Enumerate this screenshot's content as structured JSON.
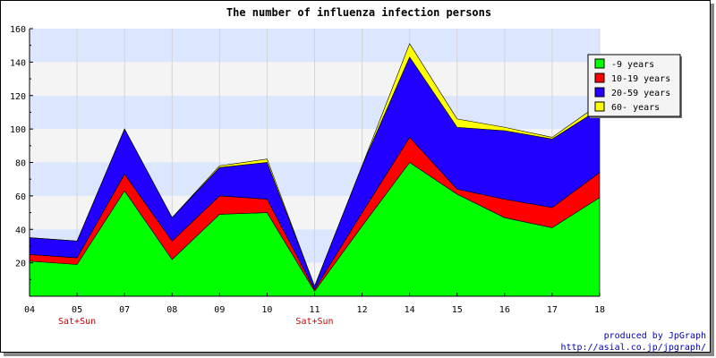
{
  "chart_data": {
    "type": "area",
    "stacked": true,
    "title": "The number of influenza infection persons",
    "x": [
      "04",
      "05",
      "07",
      "08",
      "09",
      "10",
      "11",
      "12",
      "14",
      "15",
      "16",
      "17",
      "18"
    ],
    "x_sublabels": [
      "",
      "Sat+Sun",
      "",
      "",
      "",
      "",
      "Sat+Sun",
      "",
      "",
      "",
      "",
      "",
      ""
    ],
    "ylim": [
      0,
      160
    ],
    "yticks": [
      20,
      40,
      60,
      80,
      100,
      120,
      140,
      160
    ],
    "grid": true,
    "legend_position": "right",
    "series": [
      {
        "name": "-9 years",
        "color": "#00ff00",
        "values": [
          21,
          19,
          63,
          22,
          49,
          50,
          3,
          42,
          80,
          61,
          47,
          41,
          59
        ]
      },
      {
        "name": "10-19 years",
        "color": "#ff0000",
        "values": [
          4,
          4,
          10,
          11,
          11,
          8,
          1,
          8,
          15,
          3,
          11,
          12,
          15
        ]
      },
      {
        "name": "20-59 years",
        "color": "#2200ff",
        "values": [
          10,
          10,
          27,
          14,
          17,
          22,
          2,
          28,
          48,
          37,
          41,
          41,
          38
        ]
      },
      {
        "name": "60- years",
        "color": "#ffff00",
        "values": [
          0,
          0,
          0,
          0,
          1,
          2,
          0,
          0,
          8,
          5,
          2,
          1,
          3
        ]
      }
    ]
  },
  "footer": {
    "credit_line1": "produced by JpGraph",
    "credit_line2": "http://asial.co.jp/jpgraph/"
  }
}
